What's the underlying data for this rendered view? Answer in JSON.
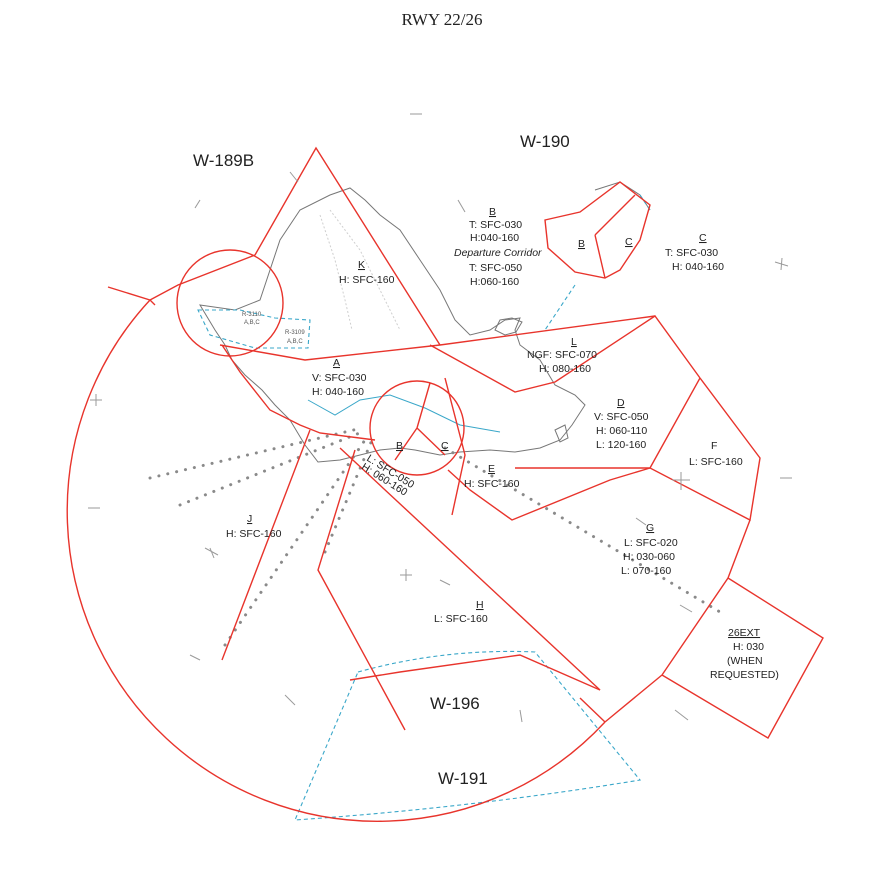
{
  "title": "RWY 22/26",
  "warning_areas": {
    "w189b": "W-189B",
    "w190": "W-190",
    "w196": "W-196",
    "w191": "W-191"
  },
  "sectors": {
    "b_top": {
      "letter": "B",
      "lines": [
        "T: SFC-030",
        "H:040-160"
      ],
      "corridor": "Departure Corridor",
      "lines2": [
        "T: SFC-050",
        "H:060-160"
      ]
    },
    "b_small": {
      "letter": "B"
    },
    "c_small": {
      "letter": "C"
    },
    "c_right": {
      "letter": "C",
      "lines": [
        "T: SFC-030",
        "H: 040-160"
      ]
    },
    "k": {
      "letter": "K",
      "lines": [
        "H: SFC-160"
      ]
    },
    "l": {
      "letter": "L",
      "lines": [
        "NGF: SFC-070",
        "H: 080-160"
      ]
    },
    "a": {
      "letter": "A",
      "lines": [
        "V: SFC-030",
        "H: 040-160"
      ]
    },
    "d": {
      "letter": "D",
      "lines": [
        "V: SFC-050",
        "H: 060-110",
        "L: 120-160"
      ]
    },
    "f": {
      "letter": "F",
      "lines": [
        "L: SFC-160"
      ]
    },
    "b_inner": {
      "letter": "B"
    },
    "c_inner": {
      "letter": "C"
    },
    "e": {
      "letter": "E",
      "lines": [
        "H: SFC-160"
      ]
    },
    "inner_l": {
      "lines": [
        "L: SFC-050",
        "H: 060-160"
      ]
    },
    "j": {
      "letter": "J",
      "lines": [
        "H: SFC-160"
      ]
    },
    "g": {
      "letter": "G",
      "lines": [
        "L: SFC-020",
        "H: 030-060",
        "L:  070-160"
      ]
    },
    "h": {
      "letter": "H",
      "lines": [
        "L: SFC-160"
      ]
    },
    "ext": {
      "letter": "26EXT",
      "lines": [
        "H: 030",
        "(WHEN",
        "REQUESTED)"
      ]
    }
  },
  "restricted": {
    "r3110": {
      "id": "R-3110",
      "sub": "A,B,C"
    },
    "r3109": {
      "id": "R-3109",
      "sub": "A,B,C"
    }
  }
}
